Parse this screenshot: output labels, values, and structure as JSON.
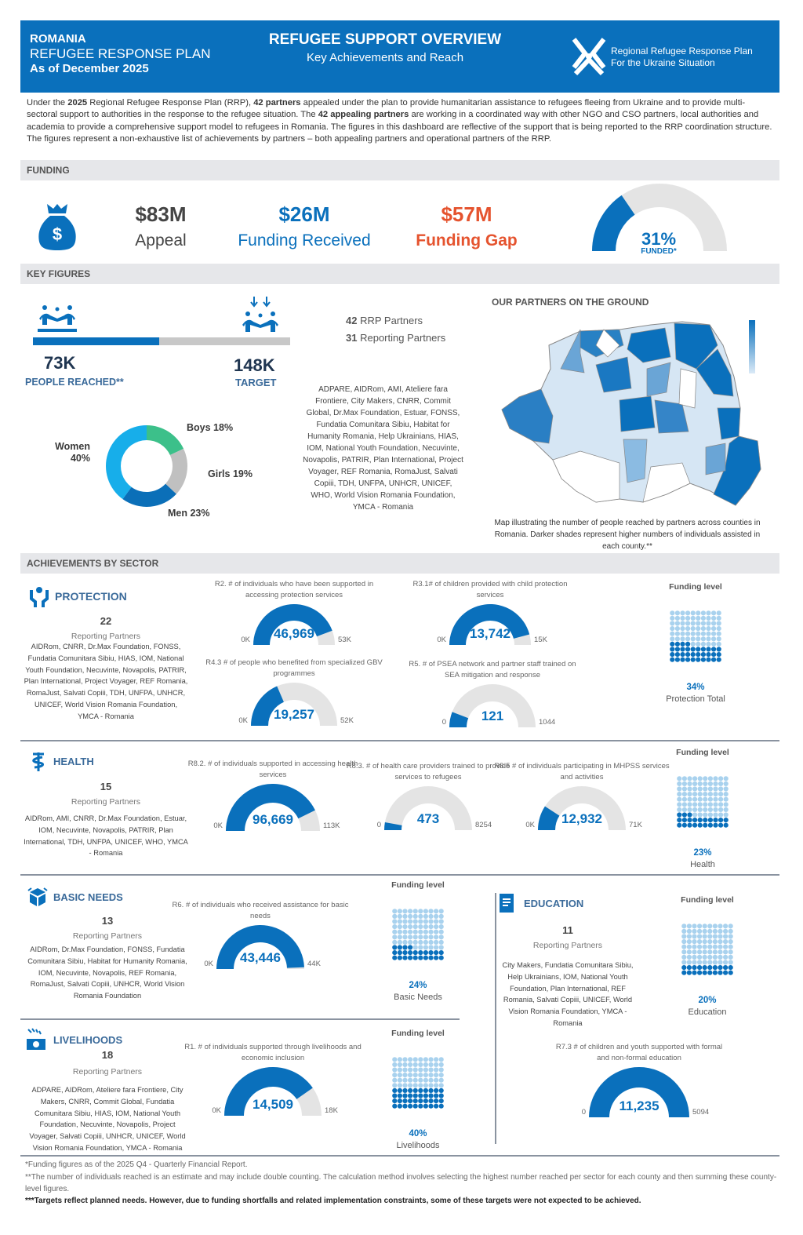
{
  "header": {
    "country": "ROMANIA",
    "plan": "REFUGEE RESPONSE PLAN",
    "date": "As of December 2025",
    "title": "REFUGEE SUPPORT OVERVIEW",
    "subtitle": "Key Achievements and Reach",
    "logo_line1": "Regional Refugee Response Plan",
    "logo_line2": "For the Ukraine Situation"
  },
  "intro": {
    "segments": [
      "Under the ",
      "2025",
      " Regional Refugee Response Plan (RRP), ",
      "42 partners",
      " appealed under the plan to provide humanitarian assistance to refugees fleeing from Ukraine and to provide multi-sectoral support to authorities in the response to the refugee situation. The ",
      "42 appealing partners",
      " are working in a coordinated way with other NGO and CSO partners, local authorities and academia to provide a comprehensive support model to refugees in Romania. The figures in this dashboard are reflective of the support that is being reported to the RRP coordination structure. The figures represent a non-exhaustive list of achievements by partners – both appealing partners and operational partners of the RRP."
    ]
  },
  "funding": {
    "section_label": "FUNDING",
    "icon": "money-bag-icon",
    "appeal_value": "$83M",
    "appeal_label": "Appeal",
    "received_value": "$26M",
    "received_label": "Funding Received",
    "gap_value": "$57M",
    "gap_label": "Funding Gap",
    "funded_pct": "31%",
    "funded_label": "FUNDED*",
    "funded_fraction": 0.31,
    "colors": {
      "primary": "#0a70bc",
      "gap": "#e5532e",
      "track": "#e4e4e4"
    }
  },
  "key_figures": {
    "section_label": "KEY FIGURES",
    "reached_value": "73K",
    "reached_label": "PEOPLE REACHED**",
    "target_value": "148K",
    "target_label": "TARGET",
    "progress_fraction": 0.49,
    "rrp_partners_count": "42",
    "rrp_partners_label": "RRP Partners",
    "reporting_count": "31",
    "reporting_label": "Reporting Partners",
    "partner_list": "ADPARE, AIDRom, AMI, Ateliere fara Frontiere, City Makers, CNRR, Commit Global, Dr.Max Foundation, Estuar, FONSS, Fundatia Comunitara Sibiu, Habitat for Humanity Romania, Help Ukrainians, HIAS, IOM, National Youth Foundation, Necuvinte, Novapolis, PATRIR, Plan International, Project Voyager, REF Romania, RomaJust, Salvati Copiii, TDH, UNFPA, UNHCR, UNICEF, WHO, World Vision Romania Foundation, YMCA - Romania",
    "demographics": [
      {
        "label": "Boys 18%",
        "pct": 18,
        "color": "#3cc08a"
      },
      {
        "label": "Girls 19%",
        "pct": 19,
        "color": "#c0c0c0"
      },
      {
        "label": "Men 23%",
        "pct": 23,
        "color": "#0b6fb8"
      },
      {
        "label": "Women 40%",
        "pct": 40,
        "color": "#17aeea"
      }
    ],
    "map_title": "OUR PARTNERS ON THE GROUND",
    "map_caption": "Map illustrating the number of people reached by partners across counties in Romania. Darker shades represent higher numbers of individuals assisted in each county.**"
  },
  "achievements": {
    "section_label": "ACHIEVEMENTS BY SECTOR",
    "funding_level_label": "Funding level",
    "reporting_partners_label": "Reporting Partners"
  },
  "sectors": {
    "protection": {
      "name": "PROTECTION",
      "icon": "hands-protection-icon",
      "count": "22",
      "partners": "AIDRom, CNRR, Dr.Max Foundation, FONSS, Fundatia Comunitara Sibiu, HIAS, IOM, National Youth Foundation, Necuvinte, Novapolis, PATRIR, Plan International, Project Voyager, REF Romania, RomaJust, Salvati Copiii, TDH, UNFPA, UNHCR, UNICEF, World Vision Romania Foundation, YMCA - Romania",
      "funding_pct": "34%",
      "funding_fraction": 0.34,
      "funding_name": "Protection Total",
      "indicators": [
        {
          "title": "R2. # of individuals who have been supported in accessing protection services",
          "value": 46969,
          "value_label": "46,969",
          "min_label": "0K",
          "max_label": "53K",
          "max": 53000
        },
        {
          "title": "R3.1# of children provided with child protection services",
          "value": 13742,
          "value_label": "13,742",
          "min_label": "0K",
          "max_label": "15K",
          "max": 15000
        },
        {
          "title": "R4.3 # of people who benefited from specialized GBV programmes",
          "value": 19257,
          "value_label": "19,257",
          "min_label": "0K",
          "max_label": "52K",
          "max": 52000
        },
        {
          "title": "R5. # of PSEA network and partner staff trained on SEA mitigation and response",
          "value": 121,
          "value_label": "121",
          "min_label": "0",
          "max_label": "1044",
          "max": 1044
        }
      ]
    },
    "health": {
      "name": "HEALTH",
      "icon": "health-caduceus-icon",
      "count": "15",
      "partners": "AIDRom, AMI, CNRR, Dr.Max Foundation, Estuar, IOM, Necuvinte, Novapolis, PATRIR, Plan International, TDH, UNFPA, UNICEF, WHO, YMCA - Romania",
      "funding_pct": "23%",
      "funding_fraction": 0.23,
      "funding_name": "Health",
      "indicators": [
        {
          "title": "R8.2. # of individuals supported in accessing health services",
          "value": 96669,
          "value_label": "96,669",
          "min_label": "0K",
          "max_label": "113K",
          "max": 113000
        },
        {
          "title": "R8.3. # of health care providers trained to provide services to refugees",
          "value": 473,
          "value_label": "473",
          "min_label": "0",
          "max_label": "8254",
          "max": 8254
        },
        {
          "title": "R8.5 # of individuals participating in MHPSS services and activities",
          "value": 12932,
          "value_label": "12,932",
          "min_label": "0K",
          "max_label": "71K",
          "max": 71000
        }
      ]
    },
    "basic_needs": {
      "name": "BASIC NEEDS",
      "icon": "box-icon",
      "count": "13",
      "partners": "AIDRom, Dr.Max Foundation, FONSS, Fundatia Comunitara Sibiu, Habitat for Humanity Romania, IOM, Necuvinte, Novapolis, REF Romania, RomaJust, Salvati Copiii, UNHCR, World Vision Romania Foundation",
      "funding_pct": "24%",
      "funding_fraction": 0.24,
      "funding_name": "Basic Needs",
      "indicators": [
        {
          "title": "R6. # of individuals who received assistance for basic needs",
          "value": 43446,
          "value_label": "43,446",
          "min_label": "0K",
          "max_label": "44K",
          "max": 44000
        }
      ]
    },
    "education": {
      "name": "EDUCATION",
      "icon": "book-icon",
      "count": "11",
      "partners": "City Makers, Fundatia Comunitara Sibiu, Help Ukrainians, IOM, National Youth Foundation, Plan International, REF Romania, Salvati Copiii, UNICEF, World Vision Romania Foundation, YMCA - Romania",
      "funding_pct": "20%",
      "funding_fraction": 0.2,
      "funding_name": "Education",
      "indicators": [
        {
          "title": "R7.3 # of children and youth supported with formal and non-formal education",
          "value": 11235,
          "value_label": "11,235",
          "min_label": "0",
          "max_label": "5094",
          "max": 5094
        }
      ]
    },
    "livelihoods": {
      "name": "LIVELIHOODS",
      "icon": "livelihoods-icon",
      "count": "18",
      "partners": "ADPARE, AIDRom, Ateliere fara Frontiere, City Makers, CNRR, Commit Global, Fundatia Comunitara Sibiu, HIAS, IOM, National Youth Foundation, Necuvinte, Novapolis, Project Voyager, Salvati Copiii, UNHCR, UNICEF, World Vision Romania Foundation, YMCA - Romania",
      "funding_pct": "40%",
      "funding_fraction": 0.4,
      "funding_name": "Livelihoods",
      "indicators": [
        {
          "title": "R1. # of individuals supported through livelihoods and economic inclusion",
          "value": 14509,
          "value_label": "14,509",
          "min_label": "0K",
          "max_label": "18K",
          "max": 18000
        }
      ]
    }
  },
  "footnotes": [
    "*Funding figures as of the 2025 Q4 - Quarterly Financial Report.",
    "**The number of individuals reached is an estimate and may include double counting. The calculation method involves selecting the highest number reached per sector for each county and then summing these county-level figures.",
    "***Targets reflect planned needs. However, due to funding shortfalls and related implementation constraints, some of these targets were not expected to be achieved."
  ]
}
